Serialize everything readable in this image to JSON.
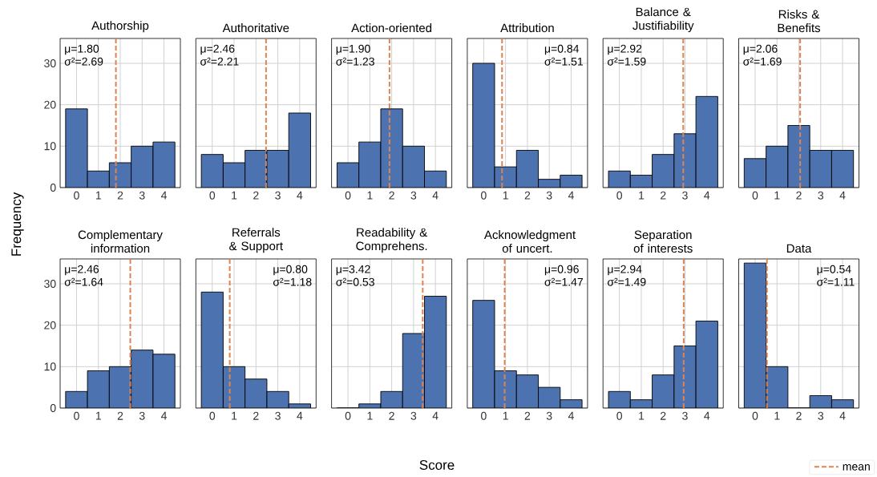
{
  "chart_data": [
    {
      "type": "histogram",
      "title": "Authorship",
      "ylabel": "Frequency",
      "bins": [
        -0.5,
        0.5,
        1.5,
        2.5,
        3.5,
        4.5
      ],
      "values": [
        19,
        4,
        6,
        10,
        11
      ],
      "color": "#4c72b0",
      "xlim": [
        -0.75,
        4.75
      ],
      "ylim": [
        0,
        36
      ],
      "xticks": [
        0,
        1,
        2,
        3,
        4
      ],
      "yticks": [
        0,
        10,
        20,
        30
      ],
      "grid": true,
      "ref_lines": [
        {
          "axis": "x",
          "value": 1.8,
          "color": "#dd8452",
          "line_style": "dashed"
        }
      ],
      "annotations": [
        "μ=1.80",
        "σ²=2.69"
      ]
    },
    {
      "type": "histogram",
      "title": "Authoritative",
      "bins": [
        -0.5,
        0.5,
        1.5,
        2.5,
        3.5,
        4.5
      ],
      "values": [
        8,
        6,
        9,
        9,
        18
      ],
      "color": "#4c72b0",
      "xlim": [
        -0.75,
        4.75
      ],
      "ylim": [
        0,
        36
      ],
      "xticks": [
        0,
        1,
        2,
        3,
        4
      ],
      "yticks": [
        0,
        10,
        20,
        30
      ],
      "grid": true,
      "tick_labels": "x",
      "ref_lines": [
        {
          "axis": "x",
          "value": 2.46,
          "color": "#dd8452",
          "line_style": "dashed"
        }
      ],
      "annotations": [
        "μ=2.46",
        "σ²=2.21"
      ]
    },
    {
      "type": "histogram",
      "title": "Action-oriented",
      "bins": [
        -0.5,
        0.5,
        1.5,
        2.5,
        3.5,
        4.5
      ],
      "values": [
        6,
        11,
        19,
        10,
        4
      ],
      "color": "#4c72b0",
      "xlim": [
        -0.75,
        4.75
      ],
      "ylim": [
        0,
        36
      ],
      "xticks": [
        0,
        1,
        2,
        3,
        4
      ],
      "yticks": [
        0,
        10,
        20,
        30
      ],
      "grid": true,
      "tick_labels": "x",
      "ref_lines": [
        {
          "axis": "x",
          "value": 1.9,
          "color": "#dd8452",
          "line_style": "dashed"
        }
      ],
      "annotations": [
        "μ=1.90",
        "σ²=1.23"
      ]
    },
    {
      "type": "histogram",
      "title": "Attribution",
      "bins": [
        -0.5,
        0.5,
        1.5,
        2.5,
        3.5,
        4.5
      ],
      "values": [
        30,
        5,
        9,
        2,
        3
      ],
      "color": "#4c72b0",
      "xlim": [
        -0.75,
        4.75
      ],
      "ylim": [
        0,
        36
      ],
      "xticks": [
        0,
        1,
        2,
        3,
        4
      ],
      "yticks": [
        0,
        10,
        20,
        30
      ],
      "grid": true,
      "tick_labels": "x",
      "ref_lines": [
        {
          "axis": "x",
          "value": 0.84,
          "color": "#dd8452",
          "line_style": "dashed"
        }
      ],
      "annotations": [
        "μ=0.84",
        "σ²=1.51"
      ]
    },
    {
      "type": "histogram",
      "title": "Balance & Justifiability",
      "bins": [
        -0.5,
        0.5,
        1.5,
        2.5,
        3.5,
        4.5
      ],
      "values": [
        4,
        3,
        8,
        13,
        22
      ],
      "color": "#4c72b0",
      "xlim": [
        -0.75,
        4.75
      ],
      "ylim": [
        0,
        36
      ],
      "xticks": [
        0,
        1,
        2,
        3,
        4
      ],
      "yticks": [
        0,
        10,
        20,
        30
      ],
      "grid": true,
      "tick_labels": "x",
      "ref_lines": [
        {
          "axis": "x",
          "value": 2.92,
          "color": "#dd8452",
          "line_style": "dashed"
        }
      ],
      "annotations": [
        "μ=2.92",
        "σ²=1.59"
      ]
    },
    {
      "type": "histogram",
      "title": "Risks & Benefits",
      "bins": [
        -0.5,
        0.5,
        1.5,
        2.5,
        3.5,
        4.5
      ],
      "values": [
        7,
        10,
        15,
        9,
        9
      ],
      "color": "#4c72b0",
      "xlim": [
        -0.75,
        4.75
      ],
      "ylim": [
        0,
        36
      ],
      "xticks": [
        0,
        1,
        2,
        3,
        4
      ],
      "yticks": [
        0,
        10,
        20,
        30
      ],
      "grid": true,
      "tick_labels": "x",
      "ref_lines": [
        {
          "axis": "x",
          "value": 2.06,
          "color": "#dd8452",
          "line_style": "dashed"
        }
      ],
      "annotations": [
        "μ=2.06",
        "σ²=1.69"
      ]
    },
    {
      "type": "histogram",
      "title": "Complementary information",
      "bins": [
        -0.5,
        0.5,
        1.5,
        2.5,
        3.5,
        4.5
      ],
      "values": [
        4,
        9,
        10,
        14,
        13
      ],
      "color": "#4c72b0",
      "xlim": [
        -0.75,
        4.75
      ],
      "ylim": [
        0,
        36
      ],
      "xticks": [
        0,
        1,
        2,
        3,
        4
      ],
      "yticks": [
        0,
        10,
        20,
        30
      ],
      "grid": true,
      "ref_lines": [
        {
          "axis": "x",
          "value": 2.46,
          "color": "#dd8452",
          "line_style": "dashed"
        }
      ],
      "annotations": [
        "μ=2.46",
        "σ²=1.64"
      ]
    },
    {
      "type": "histogram",
      "title": "Referrals & Support",
      "bins": [
        -0.5,
        0.5,
        1.5,
        2.5,
        3.5,
        4.5
      ],
      "values": [
        28,
        10,
        7,
        4,
        1
      ],
      "color": "#4c72b0",
      "xlim": [
        -0.75,
        4.75
      ],
      "ylim": [
        0,
        36
      ],
      "xticks": [
        0,
        1,
        2,
        3,
        4
      ],
      "yticks": [
        0,
        10,
        20,
        30
      ],
      "grid": true,
      "tick_labels": "x",
      "ref_lines": [
        {
          "axis": "x",
          "value": 0.8,
          "color": "#dd8452",
          "line_style": "dashed"
        }
      ],
      "annotations": [
        "μ=0.80",
        "σ²=1.18"
      ]
    },
    {
      "type": "histogram",
      "title": "Readability & Comprehens.",
      "xlabel": "Score",
      "bins": [
        -0.5,
        0.5,
        1.5,
        2.5,
        3.5,
        4.5
      ],
      "values": [
        0,
        1,
        4,
        18,
        27
      ],
      "color": "#4c72b0",
      "xlim": [
        -0.75,
        4.75
      ],
      "ylim": [
        0,
        36
      ],
      "xticks": [
        0,
        1,
        2,
        3,
        4
      ],
      "yticks": [
        0,
        10,
        20,
        30
      ],
      "grid": true,
      "tick_labels": "x",
      "ref_lines": [
        {
          "axis": "x",
          "value": 3.42,
          "color": "#dd8452",
          "line_style": "dashed"
        }
      ],
      "annotations": [
        "μ=3.42",
        "σ²=0.53"
      ]
    },
    {
      "type": "histogram",
      "title": "Acknowledgment of uncert.",
      "bins": [
        -0.5,
        0.5,
        1.5,
        2.5,
        3.5,
        4.5
      ],
      "values": [
        26,
        9,
        8,
        5,
        2
      ],
      "color": "#4c72b0",
      "xlim": [
        -0.75,
        4.75
      ],
      "ylim": [
        0,
        36
      ],
      "xticks": [
        0,
        1,
        2,
        3,
        4
      ],
      "yticks": [
        0,
        10,
        20,
        30
      ],
      "grid": true,
      "tick_labels": "x",
      "ref_lines": [
        {
          "axis": "x",
          "value": 0.96,
          "color": "#dd8452",
          "line_style": "dashed"
        }
      ],
      "annotations": [
        "μ=0.96",
        "σ²=1.47"
      ]
    },
    {
      "type": "histogram",
      "title": "Separation of interests",
      "bins": [
        -0.5,
        0.5,
        1.5,
        2.5,
        3.5,
        4.5
      ],
      "values": [
        4,
        2,
        8,
        15,
        21
      ],
      "color": "#4c72b0",
      "xlim": [
        -0.75,
        4.75
      ],
      "ylim": [
        0,
        36
      ],
      "xticks": [
        0,
        1,
        2,
        3,
        4
      ],
      "yticks": [
        0,
        10,
        20,
        30
      ],
      "grid": true,
      "tick_labels": "x",
      "ref_lines": [
        {
          "axis": "x",
          "value": 2.94,
          "color": "#dd8452",
          "line_style": "dashed"
        }
      ],
      "annotations": [
        "μ=2.94",
        "σ²=1.49"
      ]
    },
    {
      "type": "histogram",
      "title": "Data",
      "bins": [
        -0.5,
        0.5,
        1.5,
        2.5,
        3.5,
        4.5
      ],
      "values": [
        35,
        10,
        0,
        3,
        2
      ],
      "color": "#4c72b0",
      "xlim": [
        -0.75,
        4.75
      ],
      "ylim": [
        0,
        36
      ],
      "xticks": [
        0,
        1,
        2,
        3,
        4
      ],
      "yticks": [
        0,
        10,
        20,
        30
      ],
      "grid": true,
      "tick_labels": "x",
      "legend": "bottom right",
      "ref_lines": [
        {
          "axis": "x",
          "value": 0.54,
          "color": "#dd8452",
          "line_style": "dashed",
          "label": "mean"
        }
      ],
      "annotations": [
        "μ=0.54",
        "σ²=1.11"
      ]
    }
  ]
}
